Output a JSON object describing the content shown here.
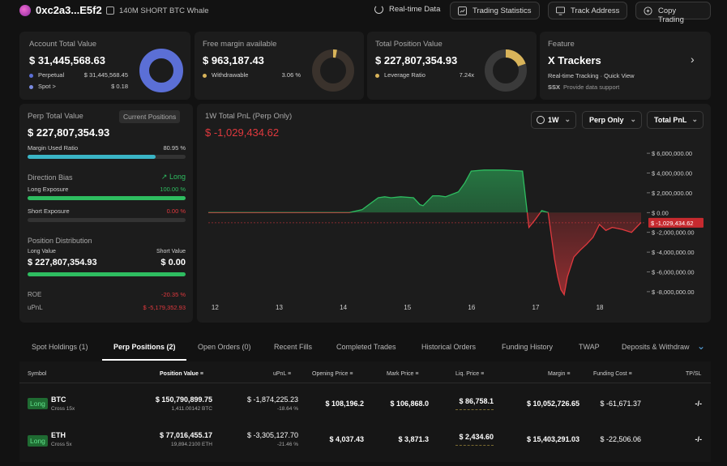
{
  "header": {
    "address": "0xc2a3...E5f2",
    "tag": "140M SHORT BTC Whale",
    "realtime_label": "Real-time Data",
    "buttons": [
      "Trading Statistics",
      "Track Address",
      "Copy Trading"
    ]
  },
  "account": {
    "title": "Account Total Value",
    "value": "$ 31,445,568.63",
    "rows": [
      {
        "label": "Perpetual",
        "value": "$ 31,445,568.45"
      },
      {
        "label": "Spot >",
        "value": "$ 0.18"
      }
    ]
  },
  "margin": {
    "title": "Free margin available",
    "value": "$ 963,187.43",
    "row_label": "Withdrawable",
    "row_value": "3.06 %"
  },
  "position": {
    "title": "Total Position Value",
    "value": "$ 227,807,354.93",
    "row_label": "Leverage Ratio",
    "row_value": "7.24x"
  },
  "feature": {
    "title": "Feature",
    "name": "X Trackers",
    "desc": "Real-time Tracking · Quick View",
    "support": "Provide data support"
  },
  "perp": {
    "title": "Perp Total Value",
    "badge": "Current Positions",
    "value": "$ 227,807,354.93",
    "margin_label": "Margin Used Ratio",
    "margin_value": "80.95 %",
    "margin_ratio": 0.8095,
    "bias_label": "Direction Bias",
    "bias_value": "Long",
    "long_label": "Long Exposure",
    "long_value": "100.00 %",
    "long_ratio": 1.0,
    "short_label": "Short Exposure",
    "short_value": "0.00 %",
    "short_ratio": 0.0,
    "dist_label": "Position Distribution",
    "long_value_label": "Long Value",
    "short_value_label": "Short Value",
    "long_total": "$ 227,807,354.93",
    "short_total": "$ 0.00",
    "roe_label": "ROE",
    "roe_value": "-20.35 %",
    "upnl_label": "uPnL",
    "upnl_value": "$ -5,179,352.93"
  },
  "pnl": {
    "title": "1W Total PnL (Perp Only)",
    "value": "$ -1,029,434.62",
    "controls": [
      "1W",
      "Perp Only",
      "Total PnL"
    ]
  },
  "chart_data": {
    "type": "area",
    "x_ticks": [
      "12",
      "13",
      "14",
      "15",
      "16",
      "17",
      "18"
    ],
    "y_ticks": [
      "$ 6,000,000.00",
      "$ 4,000,000.00",
      "$ 2,000,000.00",
      "$ 0.00",
      "$ -2,000,000.00",
      "$ -4,000,000.00",
      "$ -6,000,000.00",
      "$ -8,000,000.00"
    ],
    "ylim": [
      -8500000,
      6500000
    ],
    "xlim": [
      11.9,
      18.7
    ],
    "current_label": "$ -1,029,434.62",
    "current_value": -1029434.62,
    "x": [
      11.9,
      12.5,
      13.0,
      13.5,
      14.1,
      14.3,
      14.55,
      14.65,
      14.75,
      14.9,
      15.1,
      15.2,
      15.25,
      15.4,
      15.5,
      15.6,
      15.8,
      15.9,
      16.0,
      16.2,
      16.5,
      16.8,
      16.9,
      17.0,
      17.1,
      17.2,
      17.3,
      17.35,
      17.4,
      17.45,
      17.5,
      17.6,
      17.7,
      17.8,
      17.9,
      18.0,
      18.1,
      18.2,
      18.35,
      18.5,
      18.65
    ],
    "values": [
      0,
      0,
      0,
      0,
      0,
      300000,
      1500000,
      1600000,
      1500000,
      1600000,
      1500000,
      800000,
      700000,
      1700000,
      1700000,
      1600000,
      2100000,
      3000000,
      4200000,
      4300000,
      4300000,
      4200000,
      -1500000,
      -700000,
      200000,
      0,
      -4700000,
      -6500000,
      -7800000,
      -8300000,
      -6500000,
      -4500000,
      -3800000,
      -3200000,
      -2500000,
      -1200000,
      -1800000,
      -1500000,
      -1700000,
      -2000000,
      -1000000
    ]
  },
  "tabs": [
    "Spot Holdings (1)",
    "Perp Positions (2)",
    "Open Orders (0)",
    "Recent Fills",
    "Completed Trades",
    "Historical Orders",
    "Funding History",
    "TWAP",
    "Deposits & Withdraw"
  ],
  "table": {
    "headers": [
      "Symbol",
      "Position Value",
      "uPnL",
      "Opening Price",
      "Mark Price",
      "Liq. Price",
      "Margin",
      "Funding Cost",
      "TP/SL"
    ],
    "rows": [
      {
        "side": "Long",
        "symbol": "BTC",
        "mode": "Cross 15x",
        "value": "$ 150,790,899.75",
        "qty": "1,411.00142 BTC",
        "upnl": "$ -1,874,225.23",
        "upnl_pct": "-18.64 %",
        "open": "$ 108,196.2",
        "mark": "$ 106,868.0",
        "liq": "$ 86,758.1",
        "margin": "$ 10,052,726.65",
        "funding": "$ -61,671.37",
        "tpsl": "-/-"
      },
      {
        "side": "Long",
        "symbol": "ETH",
        "mode": "Cross 5x",
        "value": "$ 77,016,455.17",
        "qty": "19,894.2100 ETH",
        "upnl": "$ -3,305,127.70",
        "upnl_pct": "-21.46 %",
        "open": "$ 4,037.43",
        "mark": "$ 3,871.3",
        "liq": "$ 2,434.60",
        "margin": "$ 15,403,291.03",
        "funding": "$ -22,506.06",
        "tpsl": "-/-"
      }
    ]
  },
  "colors": {
    "accent_green": "#2ebd60",
    "accent_red": "#e0393e",
    "donut_blue": "#5b6fd6",
    "donut_gold": "#d9b45a"
  }
}
